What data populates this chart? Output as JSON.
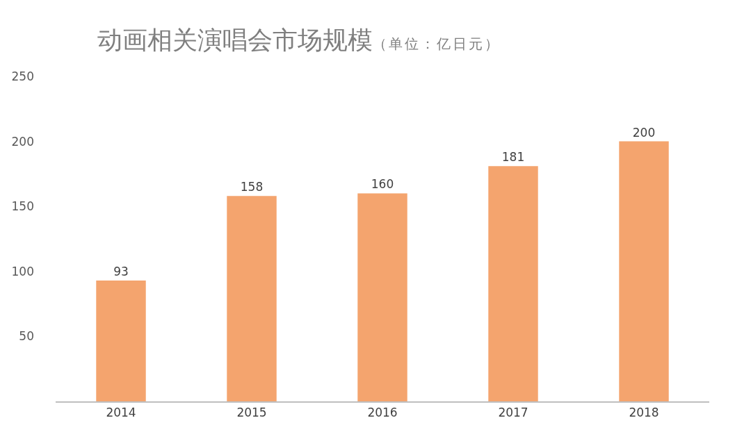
{
  "chart_data": {
    "type": "bar",
    "title": "动画相关演唱会市场规模",
    "subtitle": "（单位：亿日元）",
    "categories": [
      "2014",
      "2015",
      "2016",
      "2017",
      "2018"
    ],
    "values": [
      93,
      158,
      160,
      181,
      200
    ],
    "color": "#f4a46e",
    "ylim": [
      0,
      250
    ],
    "yticks": [
      50,
      100,
      150,
      200,
      250
    ],
    "data_labels": true
  }
}
